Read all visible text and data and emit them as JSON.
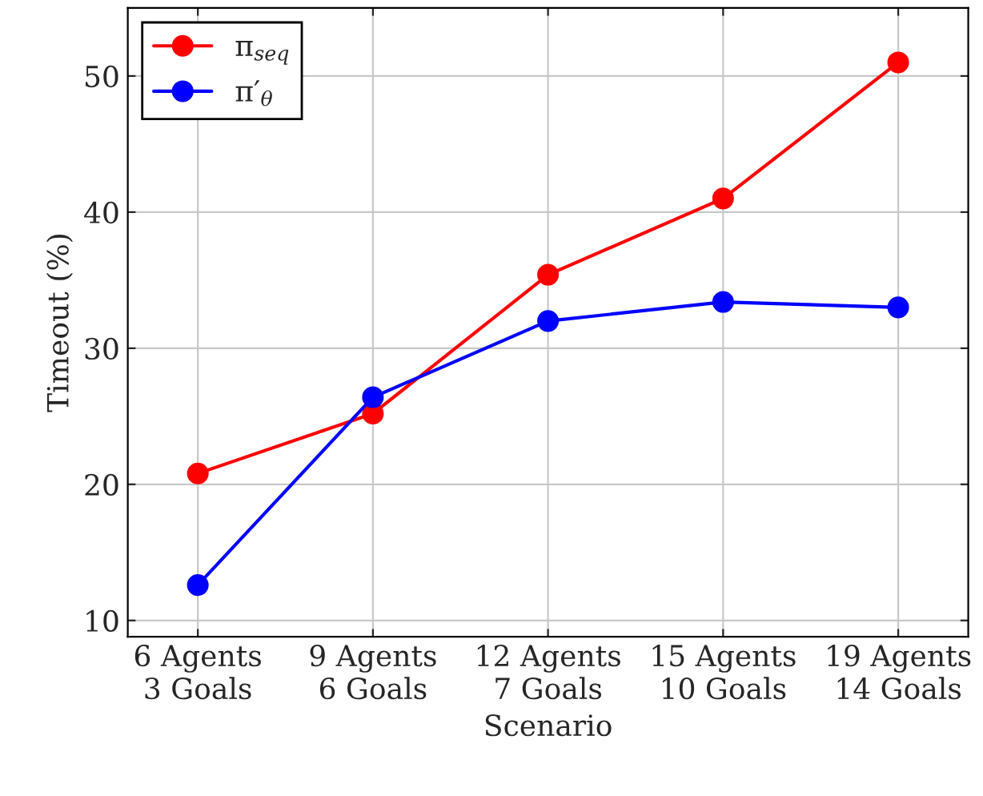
{
  "chart_data": {
    "type": "line",
    "xlabel": "Scenario",
    "ylabel": "Timeout (%)",
    "categories": [
      "6 Agents\n3 Goals",
      "9 Agents\n6 Goals",
      "12 Agents\n7 Goals",
      "15 Agents\n10 Goals",
      "19 Agents\n14 Goals"
    ],
    "series": [
      {
        "name": "π$_{seq}$",
        "color": "#ff0000",
        "values": [
          20.8,
          25.2,
          35.4,
          41.0,
          51.0
        ]
      },
      {
        "name": "π′$_{θ}$",
        "color": "#0000ff",
        "values": [
          12.6,
          26.4,
          32.0,
          33.4,
          33.0
        ]
      }
    ],
    "ylim": [
      8.8,
      55
    ],
    "yticks": [
      10,
      20,
      30,
      40,
      50
    ],
    "grid": true,
    "legend": "top left",
    "marker": "circle",
    "line_style": "solid"
  }
}
